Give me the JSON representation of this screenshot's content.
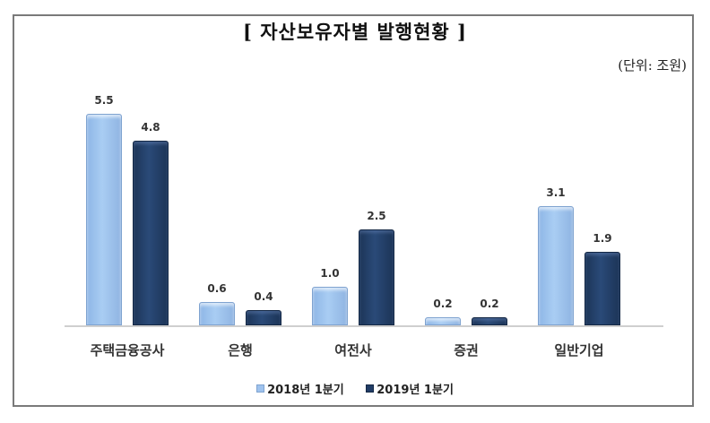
{
  "chart_data": {
    "type": "bar",
    "title": "[ 자산보유자별 발행현황 ]",
    "unit_label": "(단위: 조원)",
    "categories": [
      "주택금융공사",
      "은행",
      "여전사",
      "증권",
      "일반기업"
    ],
    "series": [
      {
        "name": "2018년 1분기",
        "color": "#9fc3ee",
        "values": [
          5.5,
          0.6,
          1.0,
          0.2,
          3.1
        ]
      },
      {
        "name": "2019년 1분기",
        "color": "#213d66",
        "values": [
          4.8,
          0.4,
          2.5,
          0.2,
          1.9
        ]
      }
    ],
    "value_labels": [
      [
        "5.5",
        "0.6",
        "1.0",
        "0.2",
        "3.1"
      ],
      [
        "4.8",
        "0.4",
        "2.5",
        "0.2",
        "1.9"
      ]
    ],
    "xlabel": "",
    "ylabel": "",
    "ylim": [
      0,
      6
    ],
    "grid": false,
    "legend_position": "bottom"
  }
}
